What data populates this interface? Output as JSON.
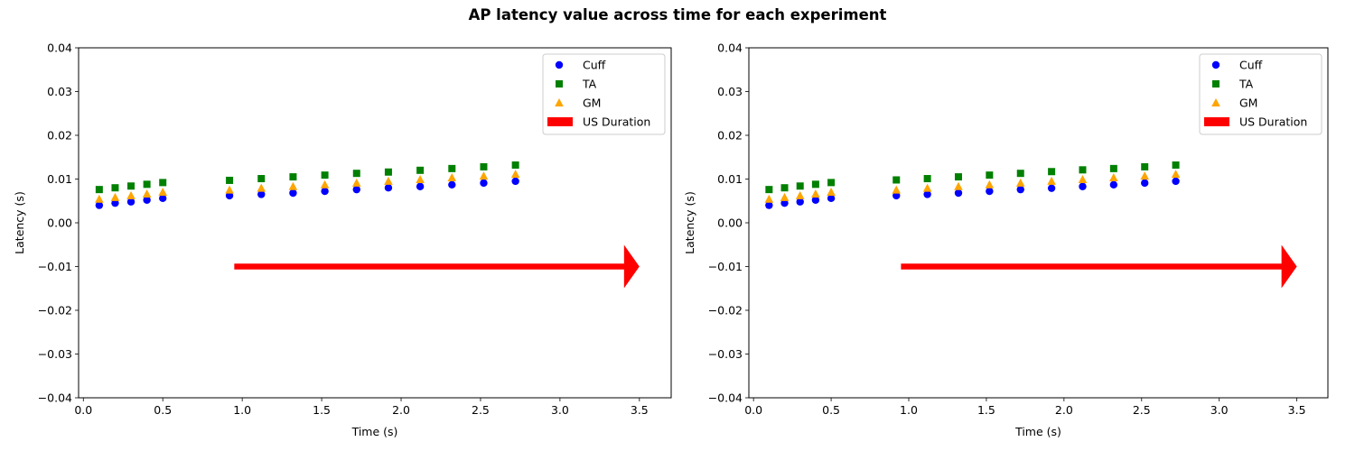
{
  "figure": {
    "title": "AP latency value across time for each experiment"
  },
  "colors": {
    "cuff": "#0000ff",
    "ta": "#008000",
    "gm": "#ffa500",
    "us": "#ff0000"
  },
  "chart_data": [
    {
      "type": "scatter",
      "title": "",
      "xlabel": "Time (s)",
      "ylabel": "Latency (s)",
      "xlim": [
        -0.03,
        3.7
      ],
      "ylim": [
        -0.04,
        0.04
      ],
      "xticks": [
        "0.0",
        "0.5",
        "1.0",
        "1.5",
        "2.0",
        "2.5",
        "3.0",
        "3.5"
      ],
      "yticks": [
        "−0.04",
        "−0.03",
        "−0.02",
        "−0.01",
        "0.00",
        "0.01",
        "0.02",
        "0.03",
        "0.04"
      ],
      "grid": false,
      "legend_position": "top-right",
      "series": [
        {
          "name": "Cuff",
          "marker": "circle",
          "x": [
            0.1,
            0.2,
            0.3,
            0.4,
            0.5,
            0.92,
            1.12,
            1.32,
            1.52,
            1.72,
            1.92,
            2.12,
            2.32,
            2.52,
            2.72
          ],
          "y": [
            0.004,
            0.0045,
            0.0048,
            0.0052,
            0.0056,
            0.0062,
            0.0065,
            0.0068,
            0.0072,
            0.0076,
            0.008,
            0.0083,
            0.0087,
            0.0091,
            0.0095
          ]
        },
        {
          "name": "TA",
          "marker": "square",
          "x": [
            0.1,
            0.2,
            0.3,
            0.4,
            0.5,
            0.92,
            1.12,
            1.32,
            1.52,
            1.72,
            1.92,
            2.12,
            2.32,
            2.52,
            2.72
          ],
          "y": [
            0.0076,
            0.008,
            0.0084,
            0.0088,
            0.0092,
            0.0097,
            0.0101,
            0.0105,
            0.0109,
            0.0113,
            0.0116,
            0.012,
            0.0124,
            0.0128,
            0.0132
          ]
        },
        {
          "name": "GM",
          "marker": "triangle",
          "x": [
            0.1,
            0.2,
            0.3,
            0.4,
            0.5,
            0.92,
            1.12,
            1.32,
            1.52,
            1.72,
            1.92,
            2.12,
            2.32,
            2.52,
            2.72
          ],
          "y": [
            0.0054,
            0.0058,
            0.0062,
            0.0066,
            0.007,
            0.0075,
            0.0079,
            0.0083,
            0.0087,
            0.0091,
            0.0095,
            0.0099,
            0.0103,
            0.0107,
            0.0111
          ]
        }
      ],
      "us_duration": {
        "name": "US Duration",
        "x_start": 0.95,
        "x_end": 3.5,
        "y": -0.01
      }
    },
    {
      "type": "scatter",
      "title": "",
      "xlabel": "Time (s)",
      "ylabel": "Latency (s)",
      "xlim": [
        -0.03,
        3.7
      ],
      "ylim": [
        -0.04,
        0.04
      ],
      "xticks": [
        "0.0",
        "0.5",
        "1.0",
        "1.5",
        "2.0",
        "2.5",
        "3.0",
        "3.5"
      ],
      "yticks": [
        "−0.04",
        "−0.03",
        "−0.02",
        "−0.01",
        "0.00",
        "0.01",
        "0.02",
        "0.03",
        "0.04"
      ],
      "grid": false,
      "legend_position": "top-right",
      "series": [
        {
          "name": "Cuff",
          "marker": "circle",
          "x": [
            0.1,
            0.2,
            0.3,
            0.4,
            0.5,
            0.92,
            1.12,
            1.32,
            1.52,
            1.72,
            1.92,
            2.12,
            2.32,
            2.52,
            2.72
          ],
          "y": [
            0.004,
            0.0045,
            0.0048,
            0.0052,
            0.0056,
            0.0062,
            0.0065,
            0.0068,
            0.0072,
            0.0076,
            0.0079,
            0.0083,
            0.0087,
            0.0091,
            0.0095
          ]
        },
        {
          "name": "TA",
          "marker": "square",
          "x": [
            0.1,
            0.2,
            0.3,
            0.4,
            0.5,
            0.92,
            1.12,
            1.32,
            1.52,
            1.72,
            1.92,
            2.12,
            2.32,
            2.52,
            2.72
          ],
          "y": [
            0.0076,
            0.008,
            0.0084,
            0.0088,
            0.0092,
            0.0098,
            0.0101,
            0.0105,
            0.0109,
            0.0113,
            0.0117,
            0.0121,
            0.0124,
            0.0128,
            0.0132
          ]
        },
        {
          "name": "GM",
          "marker": "triangle",
          "x": [
            0.1,
            0.2,
            0.3,
            0.4,
            0.5,
            0.92,
            1.12,
            1.32,
            1.52,
            1.72,
            1.92,
            2.12,
            2.32,
            2.52,
            2.72
          ],
          "y": [
            0.0054,
            0.0058,
            0.0062,
            0.0066,
            0.007,
            0.0075,
            0.0079,
            0.0083,
            0.0087,
            0.0091,
            0.0095,
            0.0099,
            0.0103,
            0.0107,
            0.0111
          ]
        }
      ],
      "us_duration": {
        "name": "US Duration",
        "x_start": 0.95,
        "x_end": 3.5,
        "y": -0.01
      }
    }
  ]
}
